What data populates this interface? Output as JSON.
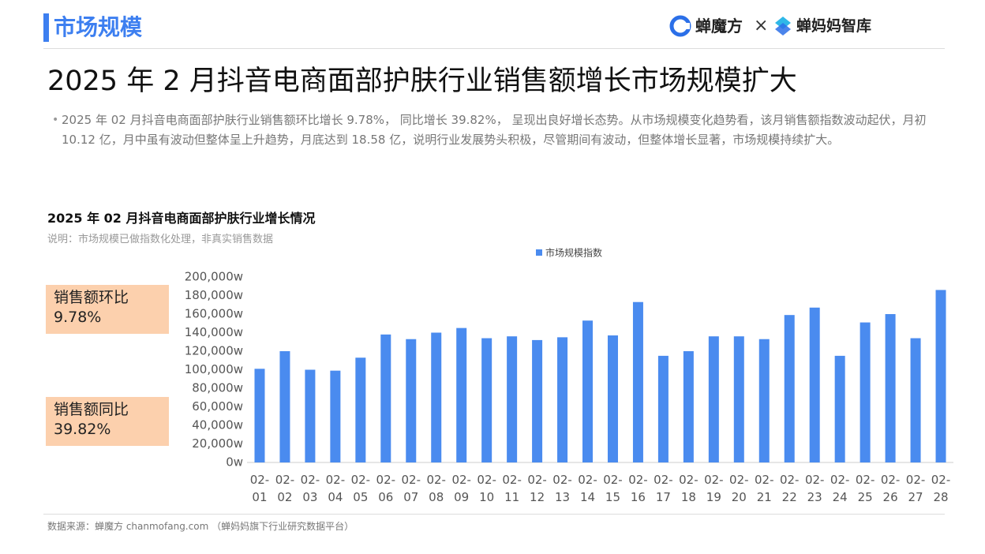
{
  "header": {
    "section": "市场规模",
    "logo_left": "蝉魔方",
    "logo_sep": "×",
    "logo_right": "蝉妈妈智库"
  },
  "title": "2025 年 2 月抖音电商面部护肤行业销售额增长市场规模扩大",
  "description": "2025 年 02 月抖音电商面部护肤行业销售额环比增长 9.78%， 同比增长 39.82%， 呈现出良好增长态势。从市场规模变化趋势看，该月销售额指数波动起伏，月初 10.12 亿，月中虽有波动但整体呈上升趋势，月底达到 18.58 亿，说明行业发展势头积极，尽管期间有波动，但整体增长显著，市场规模持续扩大。",
  "stats": [
    {
      "label": "销售额环比",
      "value": "9.78%"
    },
    {
      "label": "销售额同比",
      "value": "39.82%"
    }
  ],
  "chart_data": {
    "type": "bar",
    "title": "2025 年 02 月抖音电商面部护肤行业增长情况",
    "subtitle": "说明：市场规模已做指数化处理，非真实销售数据",
    "categories": [
      "02-01",
      "02-02",
      "02-03",
      "02-04",
      "02-05",
      "02-06",
      "02-07",
      "02-08",
      "02-09",
      "02-10",
      "02-11",
      "02-12",
      "02-13",
      "02-14",
      "02-15",
      "02-16",
      "02-17",
      "02-18",
      "02-19",
      "02-20",
      "02-21",
      "02-22",
      "02-23",
      "02-24",
      "02-25",
      "02-26",
      "02-27",
      "02-28"
    ],
    "series": [
      {
        "name": "市场规模指数",
        "color": "#4a8bef",
        "values": [
          101000,
          120000,
          100000,
          99000,
          113000,
          138000,
          133000,
          140000,
          145000,
          134000,
          136000,
          132000,
          135000,
          153000,
          137000,
          173000,
          115000,
          120000,
          136000,
          136000,
          133000,
          159000,
          167000,
          115000,
          151000,
          160000,
          134000,
          186000
        ]
      }
    ],
    "ylim": [
      0,
      200000
    ],
    "yticks": [
      {
        "value": 0,
        "label": "0w"
      },
      {
        "value": 20000,
        "label": "20,000w"
      },
      {
        "value": 40000,
        "label": "40,000w"
      },
      {
        "value": 60000,
        "label": "60,000w"
      },
      {
        "value": 80000,
        "label": "80,000w"
      },
      {
        "value": 100000,
        "label": "100,000w"
      },
      {
        "value": 120000,
        "label": "120,000w"
      },
      {
        "value": 140000,
        "label": "140,000w"
      },
      {
        "value": 160000,
        "label": "160,000w"
      },
      {
        "value": 180000,
        "label": "180,000w"
      },
      {
        "value": 200000,
        "label": "200,000w"
      }
    ],
    "legend": "top"
  },
  "footer": {
    "source": "数据来源：蝉魔方  chanmofang.com  （蝉妈妈旗下行业研究数据平台）"
  }
}
